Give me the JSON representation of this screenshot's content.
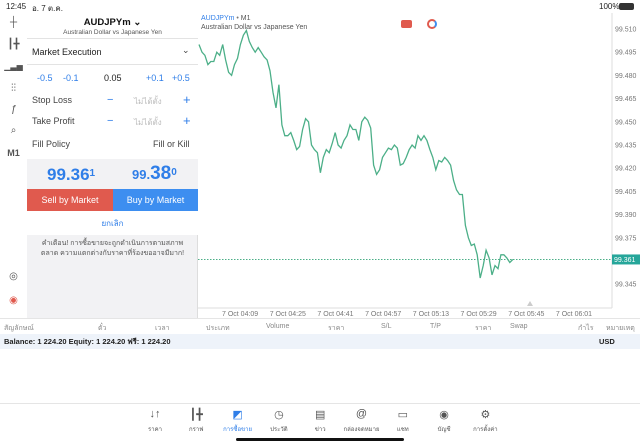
{
  "status": {
    "time": "12:45",
    "date": "อ. 7 ต.ค.",
    "battery": "100%"
  },
  "toolbar": {
    "timeframe": "M1",
    "icons": [
      "crosshair-icon",
      "candles-icon",
      "indicators-icon",
      "settings-sliders-icon",
      "function-icon",
      "objects-icon"
    ]
  },
  "order": {
    "symbol": "AUDJPYm",
    "description": "Australian Dollar vs Japanese Yen",
    "execution": "Market Execution",
    "volume_steps": [
      "-0.5",
      "-0.1",
      "+0.1",
      "+0.5"
    ],
    "volume": "0.05",
    "stop_loss": {
      "label": "Stop Loss",
      "placeholder": "ไม่ได้ตั้ง",
      "minus": "−",
      "plus": "+"
    },
    "take_profit": {
      "label": "Take Profit",
      "placeholder": "ไม่ได้ตั้ง",
      "minus": "−",
      "plus": "+"
    },
    "fill_policy": {
      "label": "Fill Policy",
      "value": "Fill or Kill"
    },
    "bid": {
      "main": "99.36",
      "big": "36",
      "prefix": "99.",
      "sup": "1"
    },
    "ask": {
      "prefix": "99.",
      "big": "38",
      "sup": "0"
    },
    "sell_label": "Sell by Market",
    "buy_label": "Buy by Market",
    "cancel_label": "ยกเลิก",
    "warning": "คำเตือน! การซื้อขายจะถูกดำเนินการตามสภาพตลาด ความแตกต่างกับราคาที่ร้องขออาจมีมาก!",
    "sell_color": "#e05a4e",
    "buy_color": "#3d8ef0"
  },
  "chart_data": {
    "type": "line",
    "symbol": "AUDJPYm",
    "timeframe": "M1",
    "subtitle": "Australian Dollar vs Japanese Yen",
    "line_color": "#4caf88",
    "current_price": "99.361",
    "yticks": [
      "99.510",
      "99.495",
      "99.480",
      "99.465",
      "99.450",
      "99.435",
      "99.420",
      "99.405",
      "99.390",
      "99.375",
      "99.345"
    ],
    "xticks": [
      "7 Oct 04:09",
      "7 Oct 04:25",
      "7 Oct 04:41",
      "7 Oct 04:57",
      "7 Oct 05:13",
      "7 Oct 05:29",
      "7 Oct 05:45",
      "7 Oct 06:01"
    ],
    "values": [
      99.5,
      99.495,
      99.493,
      99.487,
      99.489,
      99.489,
      99.495,
      99.493,
      99.5,
      99.49,
      99.482,
      99.48,
      99.487,
      99.491,
      99.5,
      99.506,
      99.509,
      99.502,
      99.498,
      99.495,
      99.498,
      99.495,
      99.492,
      99.49,
      99.483,
      99.469,
      99.459,
      99.474,
      99.448,
      99.441,
      99.441,
      99.443,
      99.438,
      99.432,
      99.434,
      99.445,
      99.452,
      99.45,
      99.435,
      99.432,
      99.43,
      99.417,
      99.427,
      99.432,
      99.43,
      99.436,
      99.443,
      99.435,
      99.433,
      99.438,
      99.441,
      99.448,
      99.445,
      99.445,
      99.438,
      99.45,
      99.453,
      99.451,
      99.446,
      99.422,
      99.416,
      99.419,
      99.427,
      99.43,
      99.433,
      99.432,
      99.435,
      99.433,
      99.422,
      99.423,
      99.427,
      99.432,
      99.435,
      99.433,
      99.441,
      99.438,
      99.441,
      99.438,
      99.432,
      99.427,
      99.419,
      99.425,
      99.424,
      99.427,
      99.425,
      99.422,
      99.412,
      99.406,
      99.403,
      99.403,
      99.383,
      99.375,
      99.37,
      99.371,
      99.364,
      99.349,
      99.357,
      99.367,
      99.362,
      99.351,
      99.357,
      99.355,
      99.364,
      99.364,
      99.362,
      99.359,
      99.361
    ]
  },
  "trades": {
    "columns": [
      "สัญลักษณ์",
      "ตั๋ว",
      "เวลา",
      "ประเภท",
      "Volume",
      "ราคา",
      "S/L",
      "T/P",
      "ราคา",
      "Swap",
      "กำไร",
      "หมายเหตุ"
    ],
    "balance": "Balance: 1 224.20 Equity: 1 224.20 ฟรี: 1 224.20",
    "currency": "USD"
  },
  "nav": {
    "items": [
      {
        "label": "ราคา",
        "icon": "↓↑"
      },
      {
        "label": "กราฟ",
        "icon": "┃╋"
      },
      {
        "label": "การซื้อขาย",
        "icon": "◩"
      },
      {
        "label": "ประวัติ",
        "icon": "◷"
      },
      {
        "label": "ข่าว",
        "icon": "▤"
      },
      {
        "label": "กล่องจดหมาย",
        "icon": "@"
      },
      {
        "label": "แชท",
        "icon": "▭"
      },
      {
        "label": "บัญชี",
        "icon": "◉"
      },
      {
        "label": "การตั้งค่า",
        "icon": "⚙"
      }
    ],
    "active": 2
  }
}
